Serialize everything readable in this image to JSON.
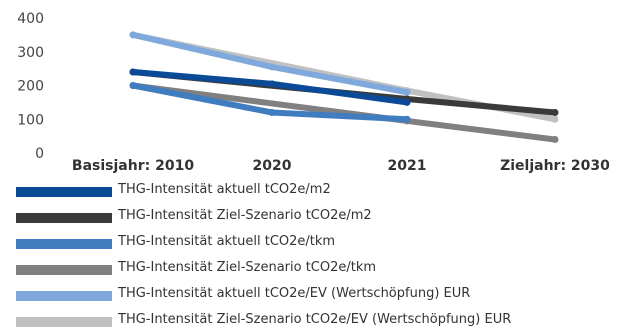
{
  "chart_data": {
    "type": "line",
    "categories": [
      "Basisjahr: 2010",
      "2020",
      "2021",
      "Zieljahr: 2030"
    ],
    "ylim": [
      0,
      400
    ],
    "yticks": [
      0,
      100,
      200,
      300,
      400
    ],
    "grid": false,
    "legend_position": "bottom",
    "series": [
      {
        "name": "THG-Intensität aktuell tCO2e/m2",
        "color": "#0b4a96",
        "values": [
          240,
          205,
          150,
          null
        ]
      },
      {
        "name": "THG-Intensität Ziel-Szenario tCO2e/m2",
        "color": "#3a3a3a",
        "values": [
          240,
          null,
          160,
          120
        ]
      },
      {
        "name": "THG-Intensität aktuell tCO2e/tkm",
        "color": "#3f7cc0",
        "values": [
          200,
          120,
          100,
          null
        ]
      },
      {
        "name": "THG-Intensität Ziel-Szenario tCO2e/tkm",
        "color": "#808080",
        "values": [
          200,
          null,
          95,
          40
        ]
      },
      {
        "name": "THG-Intensität aktuell tCO2e/EV (Wertschöpfung) EUR",
        "color": "#7fa8dc",
        "values": [
          350,
          255,
          180,
          null
        ]
      },
      {
        "name": "THG-Intensität Ziel-Szenario tCO2e/EV (Wertschöpfung) EUR",
        "color": "#c0c0c0",
        "values": [
          350,
          null,
          185,
          100
        ]
      }
    ]
  }
}
